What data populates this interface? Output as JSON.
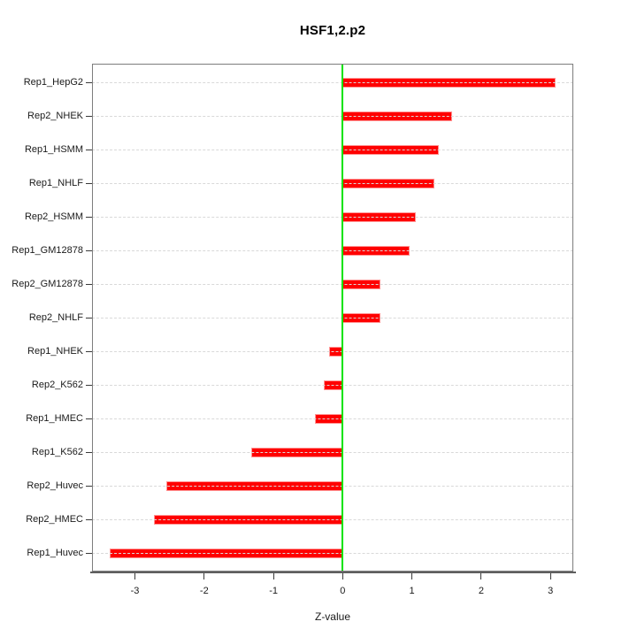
{
  "title": "HSF1,2.p2",
  "chart_data": {
    "type": "bar",
    "orientation": "horizontal",
    "title": "HSF1,2.p2",
    "xlabel": "Z-value",
    "categories": [
      "Rep1_HepG2",
      "Rep2_NHEK",
      "Rep1_HSMM",
      "Rep1_NHLF",
      "Rep2_HSMM",
      "Rep1_GM12878",
      "Rep2_GM12878",
      "Rep2_NHLF",
      "Rep1_NHEK",
      "Rep2_K562",
      "Rep1_HMEC",
      "Rep1_K562",
      "Rep2_Huvec",
      "Rep2_HMEC",
      "Rep1_Huvec"
    ],
    "values": [
      3.08,
      1.58,
      1.39,
      1.33,
      1.06,
      0.97,
      0.55,
      0.55,
      -0.2,
      -0.27,
      -0.4,
      -1.32,
      -2.55,
      -2.72,
      -3.37
    ],
    "xticks": [
      -3,
      -2,
      -1,
      0,
      1,
      2,
      3
    ],
    "xlim": [
      -3.62,
      3.33
    ],
    "grid": "dashed-horizontal",
    "legend": "none",
    "colors": {
      "bar": "#ff0000",
      "bar_border": "#ff9595",
      "zero_line": "#00e300",
      "grid": "#d9d9d9",
      "axis_text": "#1a1a1a"
    }
  }
}
